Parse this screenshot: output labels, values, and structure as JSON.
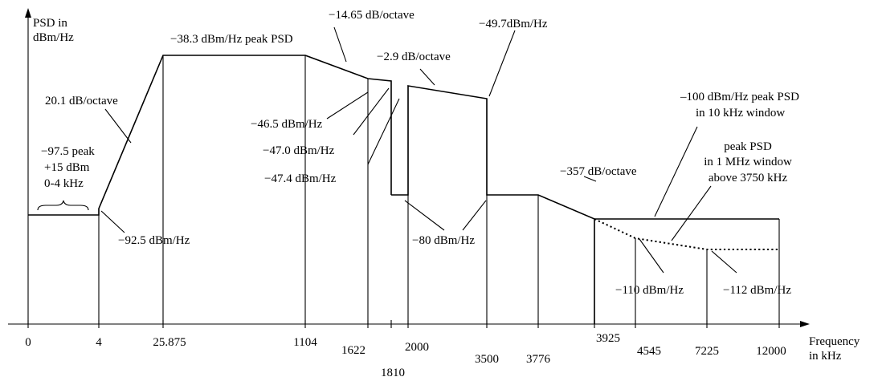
{
  "axes": {
    "y_label": [
      "PSD in",
      "dBm/Hz"
    ],
    "x_label": [
      "Frequency",
      "in kHz"
    ]
  },
  "ticks": [
    "0",
    "4",
    "25.875",
    "1104",
    "1622",
    "1810",
    "2000",
    "3500",
    "3776",
    "3925",
    "4545",
    "7225",
    "12000"
  ],
  "annotations": {
    "slope_20_1": "20.1 dB/octave",
    "peak_38_3": "−38.3 dBm/Hz peak PSD",
    "slope_14_65": "−14.65 dB/octave",
    "slope_2_9": "−2.9 dB/octave",
    "level_49_7": "−49.7dBm/Hz",
    "peak_97_5": [
      "−97.5 peak",
      "+15 dBm",
      "0-4 kHz"
    ],
    "level_92_5": "−92.5 dBm/Hz",
    "level_46_5": "−46.5 dBm/Hz",
    "level_47_0": "−47.0 dBm/Hz",
    "level_47_4": "−47.4 dBm/Hz",
    "level_80": "−80 dBm/Hz",
    "slope_357": "−357 dB/octave",
    "peak_100": [
      "–100 dBm/Hz peak PSD",
      "in 10 kHz window"
    ],
    "peak_1mhz": [
      "peak PSD",
      "in 1 MHz window",
      "above 3750 kHz"
    ],
    "level_110": "−110 dBm/Hz",
    "level_112": "−112 dBm/Hz"
  }
}
